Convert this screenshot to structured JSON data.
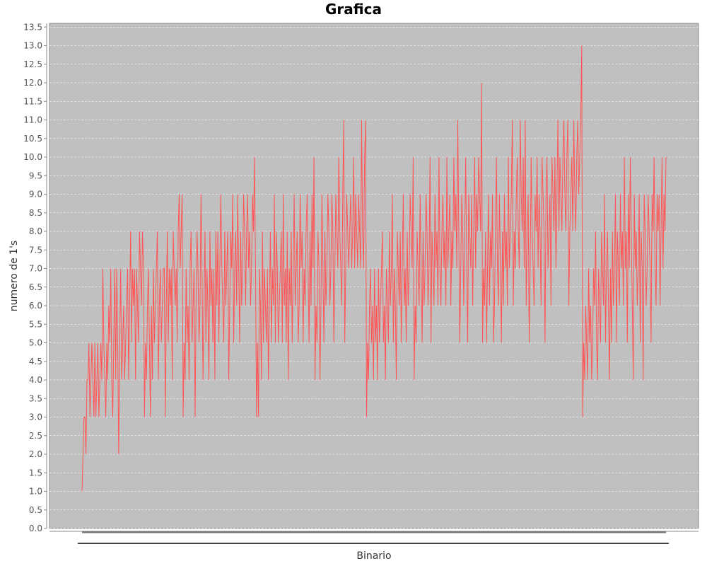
{
  "chart_data": {
    "type": "line",
    "title": "Grafica",
    "xlabel": "Binario",
    "ylabel": "numero de 1's",
    "ylim": [
      0,
      13.6
    ],
    "y_ticks": [
      "0.0",
      "0.5",
      "1.0",
      "1.5",
      "2.0",
      "2.5",
      "3.0",
      "3.5",
      "4.0",
      "4.5",
      "5.0",
      "5.5",
      "6.0",
      "6.5",
      "7.0",
      "7.5",
      "8.0",
      "8.5",
      "9.0",
      "9.5",
      "10.0",
      "10.5",
      "11.0",
      "11.5",
      "12.0",
      "12.5",
      "13.0",
      "13.5"
    ],
    "grid": true,
    "colors": {
      "plot_background": "#c0c0c0",
      "series": "#ff5555",
      "grid": "#ffffff"
    },
    "series": [
      {
        "values": [
          1,
          2,
          3,
          3,
          2,
          4,
          4,
          5,
          3,
          4,
          5,
          4,
          3,
          5,
          3,
          4,
          5,
          3,
          4,
          5,
          4,
          7,
          5,
          4,
          3,
          5,
          4,
          6,
          5,
          7,
          4,
          3,
          5,
          7,
          4,
          7,
          5,
          2,
          5,
          7,
          4,
          5,
          6,
          4,
          5,
          6,
          7,
          4,
          6,
          8,
          5,
          7,
          6,
          7,
          4,
          7,
          6,
          5,
          8,
          7,
          6,
          8,
          7,
          3,
          5,
          4,
          6,
          7,
          5,
          3,
          6,
          4,
          7,
          5,
          6,
          7,
          8,
          4,
          6,
          7,
          5,
          6,
          7,
          7,
          3,
          6,
          8,
          5,
          7,
          6,
          7,
          4,
          8,
          7,
          6,
          7,
          5,
          8,
          9,
          7,
          8,
          9,
          3,
          5,
          4,
          7,
          5,
          6,
          4,
          7,
          8,
          5,
          6,
          7,
          3,
          6,
          8,
          7,
          5,
          6,
          9,
          7,
          4,
          6,
          8,
          5,
          7,
          6,
          4,
          8,
          6,
          7,
          5,
          7,
          4,
          8,
          6,
          8,
          5,
          7,
          9,
          7,
          6,
          5,
          8,
          6,
          7,
          8,
          4,
          6,
          8,
          7,
          9,
          5,
          7,
          8,
          6,
          9,
          7,
          5,
          8,
          6,
          7,
          9,
          8,
          6,
          8,
          9,
          7,
          8,
          6,
          7,
          9,
          8,
          10,
          7,
          3,
          5,
          3,
          7,
          6,
          4,
          8,
          5,
          7,
          6,
          5,
          7,
          4,
          6,
          8,
          5,
          7,
          6,
          9,
          5,
          8,
          7,
          5,
          6,
          7,
          8,
          5,
          9,
          6,
          7,
          5,
          8,
          4,
          7,
          6,
          8,
          5,
          7,
          9,
          6,
          7,
          8,
          5,
          6,
          9,
          7,
          8,
          5,
          7,
          6,
          8,
          9,
          7,
          5,
          8,
          6,
          9,
          7,
          10,
          4,
          6,
          5,
          8,
          7,
          4,
          6,
          9,
          7,
          5,
          8,
          6,
          7,
          9,
          8,
          6,
          7,
          9,
          8,
          5,
          7,
          9,
          8,
          7,
          10,
          8,
          7,
          6,
          9,
          11,
          5,
          7,
          9,
          8,
          7,
          8,
          9,
          7,
          8,
          10,
          7,
          9,
          8,
          7,
          9,
          8,
          7,
          11,
          8,
          7,
          10,
          11,
          3,
          5,
          4,
          6,
          7,
          5,
          6,
          4,
          7,
          5,
          6,
          4,
          7,
          5,
          6,
          7,
          8,
          5,
          6,
          4,
          7,
          6,
          5,
          8,
          6,
          7,
          9,
          5,
          7,
          6,
          4,
          8,
          7,
          6,
          8,
          5,
          7,
          9,
          6,
          7,
          5,
          8,
          6,
          7,
          9,
          8,
          7,
          10,
          4,
          6,
          5,
          8,
          7,
          6,
          9,
          7,
          5,
          8,
          6,
          7,
          9,
          8,
          6,
          7,
          10,
          5,
          8,
          7,
          6,
          9,
          7,
          8,
          6,
          10,
          7,
          6,
          8,
          9,
          7,
          8,
          6,
          10,
          7,
          8,
          9,
          6,
          8,
          7,
          10,
          8,
          9,
          7,
          11,
          8,
          5,
          7,
          9,
          8,
          6,
          8,
          10,
          7,
          5,
          9,
          8,
          7,
          9,
          6,
          8,
          10,
          7,
          9,
          8,
          10,
          9,
          8,
          12,
          5,
          7,
          6,
          8,
          5,
          7,
          9,
          6,
          8,
          7,
          9,
          5,
          6,
          8,
          10,
          7,
          6,
          9,
          7,
          5,
          8,
          6,
          9,
          7,
          8,
          6,
          10,
          7,
          8,
          9,
          11,
          6,
          8,
          7,
          9,
          10,
          8,
          7,
          11,
          9,
          8,
          10,
          7,
          11,
          6,
          8,
          9,
          5,
          7,
          10,
          8,
          7,
          6,
          9,
          8,
          10,
          7,
          9,
          8,
          6,
          10,
          9,
          8,
          5,
          9,
          10,
          7,
          8,
          9,
          6,
          10,
          9,
          8,
          10,
          7,
          9,
          11,
          8,
          10,
          9,
          8,
          10,
          11,
          9,
          8,
          10,
          11,
          6,
          8,
          9,
          10,
          8,
          11,
          9,
          8,
          10,
          11,
          9,
          10,
          11,
          13,
          3,
          5,
          4,
          6,
          5,
          4,
          7,
          5,
          6,
          4,
          5,
          7,
          6,
          8,
          5,
          4,
          7,
          6,
          5,
          8,
          7,
          6,
          9,
          5,
          7,
          8,
          6,
          4,
          7,
          5,
          8,
          6,
          7,
          9,
          5,
          8,
          7,
          6,
          9,
          7,
          8,
          6,
          10,
          7,
          8,
          5,
          9,
          7,
          10,
          8,
          6,
          4,
          9,
          7,
          8,
          6,
          7,
          9,
          5,
          8,
          7,
          4,
          9,
          8,
          6,
          7,
          9,
          8,
          7,
          5,
          9,
          8,
          10,
          7,
          6,
          9,
          8,
          9,
          6,
          8,
          10,
          7,
          9,
          8,
          10
        ]
      }
    ]
  }
}
